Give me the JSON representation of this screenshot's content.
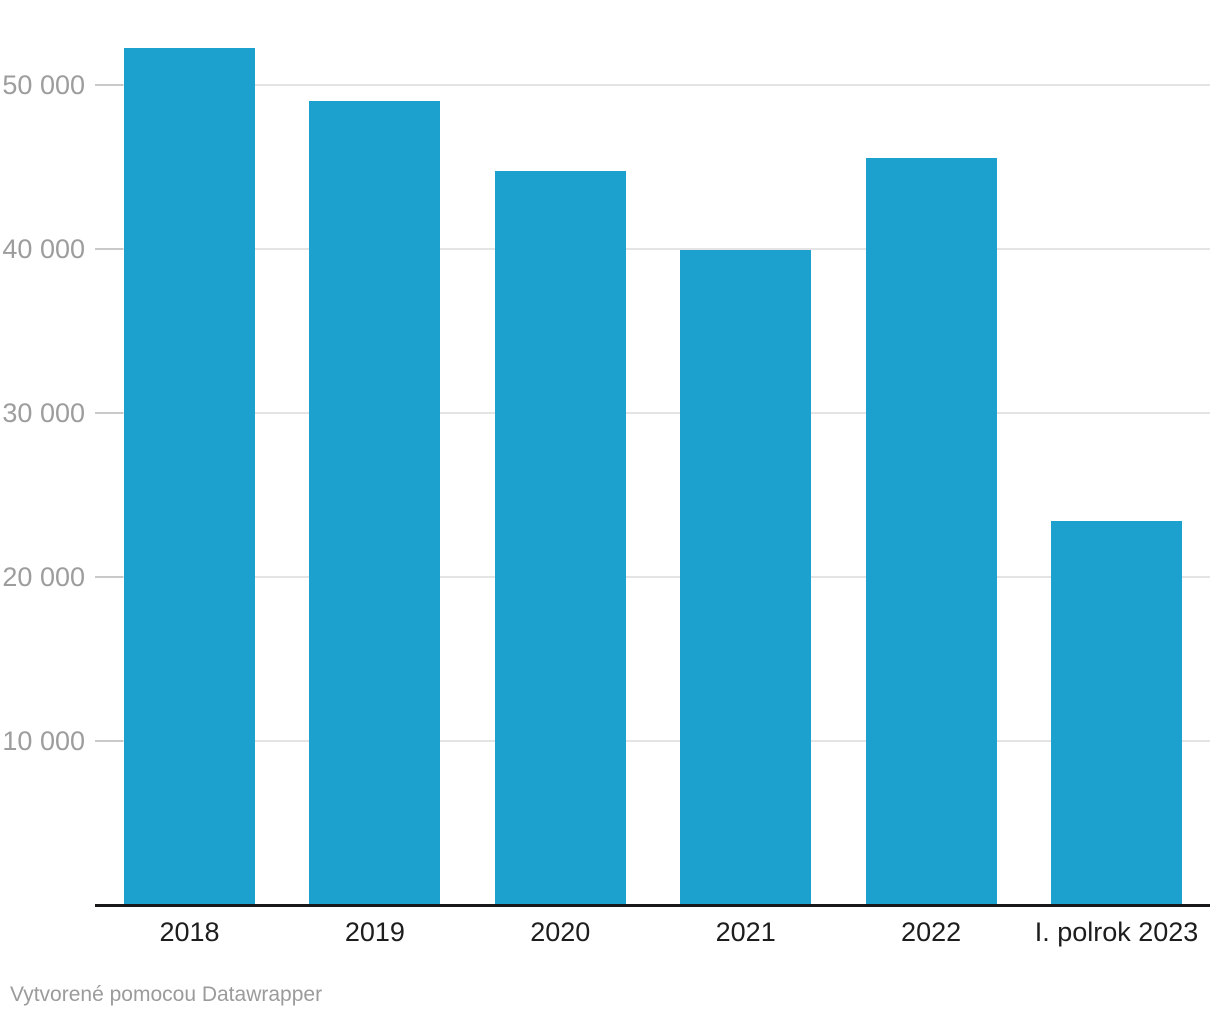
{
  "chart_data": {
    "type": "bar",
    "categories": [
      "2018",
      "2019",
      "2020",
      "2021",
      "2022",
      "I. polrok 2023"
    ],
    "values": [
      52200,
      49000,
      44700,
      39900,
      45500,
      23400
    ],
    "title": "",
    "xlabel": "",
    "ylabel": "",
    "ylim": [
      0,
      53000
    ],
    "y_ticks": [
      {
        "value": 10000,
        "label": "10 000"
      },
      {
        "value": 20000,
        "label": "20 000"
      },
      {
        "value": 30000,
        "label": "30 000"
      },
      {
        "value": 40000,
        "label": "40 000"
      },
      {
        "value": 50000,
        "label": "50 000"
      }
    ],
    "grid": true,
    "legend_position": "none",
    "bar_color": "#1CA1CE"
  },
  "colors": {
    "bar": "#1CA1CE",
    "gridline": "#e4e4e4",
    "grid_tick": "#c9c9c9",
    "axis_line": "#18181b",
    "y_label_text": "#9d9d9d",
    "x_label_text": "#1d1d1d",
    "footer_text": "#9b9b9b",
    "background": "#ffffff"
  },
  "footer": {
    "credit": "Vytvorené pomocou Datawrapper"
  }
}
